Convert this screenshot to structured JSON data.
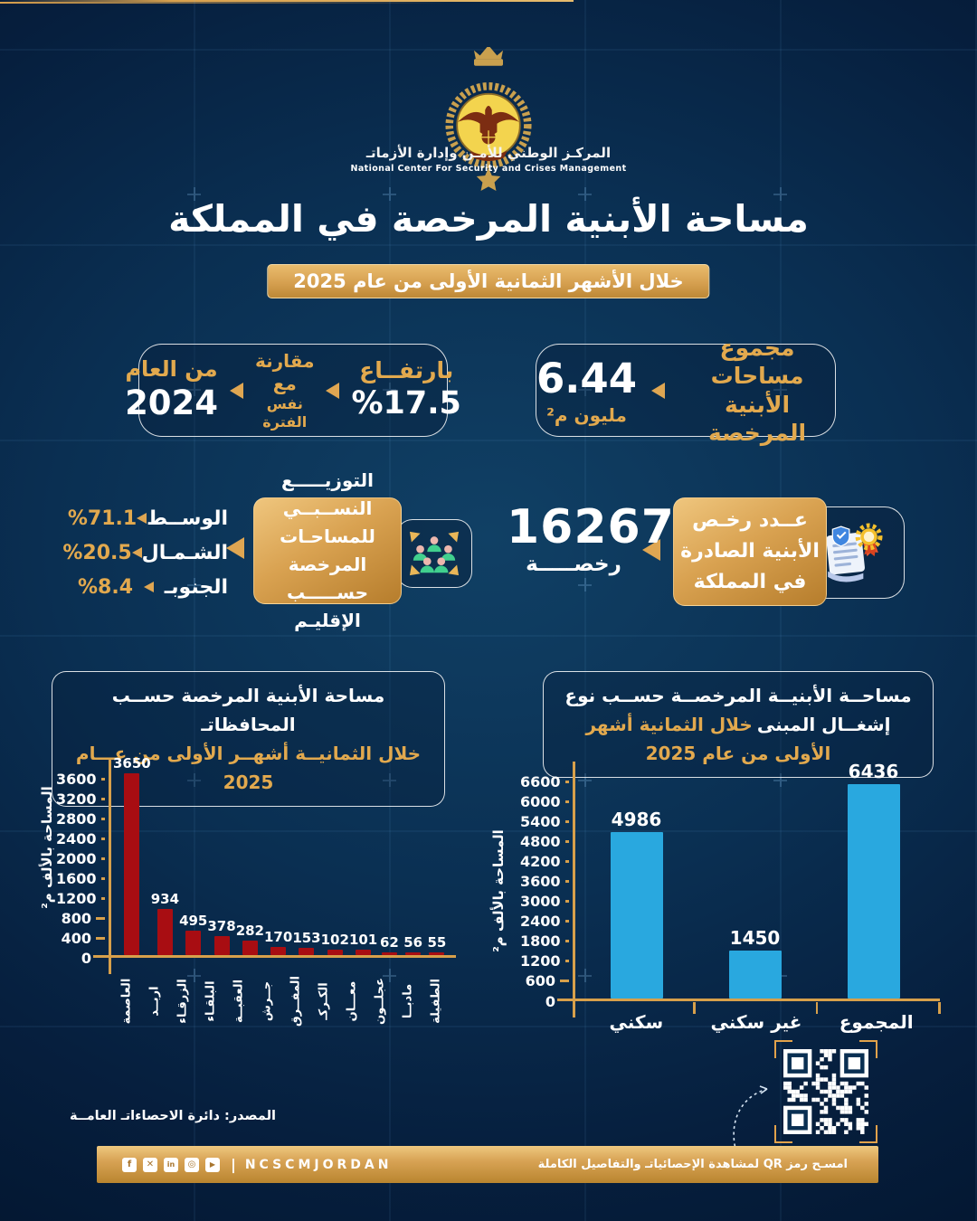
{
  "brand": {
    "org_name_ar": "المركـز الوطني للأمـن وإدارة الأزماتـ",
    "org_name_en": "National Center For Security and Crises Management",
    "divider": "|",
    "handle": "NCSCMJORDAN",
    "social_icons": [
      {
        "name": "facebook-icon",
        "glyph": "f"
      },
      {
        "name": "x-icon",
        "glyph": "✕"
      },
      {
        "name": "linkedin-icon",
        "glyph": "in"
      },
      {
        "name": "instagram-icon",
        "glyph": "◎"
      },
      {
        "name": "youtube-icon",
        "glyph": "▶"
      }
    ]
  },
  "header": {
    "title": "مساحة الأبنية المرخصة في المملكة",
    "subtitle": "خلال الأشهر الثمانية الأولى من عام 2025"
  },
  "kpi_total_area": {
    "label": "مجموع مساحات الأبنية المرخصة",
    "value": "6.44",
    "unit": "مليون م²"
  },
  "kpi_increase": {
    "headline": "بارتفــاع",
    "value": "%17.5",
    "compare_line1": "مقارنة مع",
    "compare_line2": "نفس الفترة",
    "year_label": "من العام",
    "year_value": "2024"
  },
  "kpi_permits": {
    "label": "عــدد رخـص الأبنية الصادرة في المملكة",
    "value": "16267",
    "unit": "رخصـــــة"
  },
  "kpi_distribution": {
    "label": "التوزيـــــع النســبــي للمساحـات المرخصة حســـــب الإقليـم",
    "regions": [
      {
        "name": "الوســط",
        "value": "%71.1"
      },
      {
        "name": "الشـمـال",
        "value": "%20.5"
      },
      {
        "name": "الجنوبـ",
        "value": "%8.4"
      }
    ]
  },
  "source_note": "المصدر: دائرة الاحصاءاتـ العامــة",
  "qr_caption": "امسـح رمز QR لمشاهدة الإحصائياتـ والتفاصيل الكاملة",
  "chart_data": [
    {
      "type": "bar",
      "title": "مساحة الأبنية المرخصة حســب المحافظاتـ",
      "subtitle": "خلال الثمانيــة أشهــر الأولى من عـــام 2025",
      "ylabel": "المساحة بالألف م²",
      "categories": [
        "العاصمة",
        "اربــد",
        "الزرقـاء",
        "البلقـاء",
        "العقبــة",
        "جــرش",
        "المفــرق",
        "الكـركـ",
        "معـــان",
        "عجلــون",
        "مادبــا",
        "الطفيلة"
      ],
      "values": [
        3650,
        934,
        495,
        378,
        282,
        170,
        153,
        102,
        101,
        62,
        56,
        55
      ],
      "ylim": [
        0,
        3600
      ],
      "ytick_step": 400,
      "bar_color": "#a80d12",
      "grid": false,
      "legend": "none"
    },
    {
      "type": "bar",
      "title": "مساحــة الأبنيــة المرخصــة حســب نوع إشغــال المبنى",
      "subtitle": "خلال الثمانية أشهر الأولى من عام 2025",
      "ylabel": "المساحة بالألف م²",
      "categories": [
        "سكني",
        "غير سكني",
        "المجموع"
      ],
      "values": [
        4986,
        1450,
        6436
      ],
      "ylim": [
        0,
        6600
      ],
      "ytick_step": 600,
      "bar_color": "#29a8df",
      "grid": false,
      "legend": "none"
    }
  ]
}
